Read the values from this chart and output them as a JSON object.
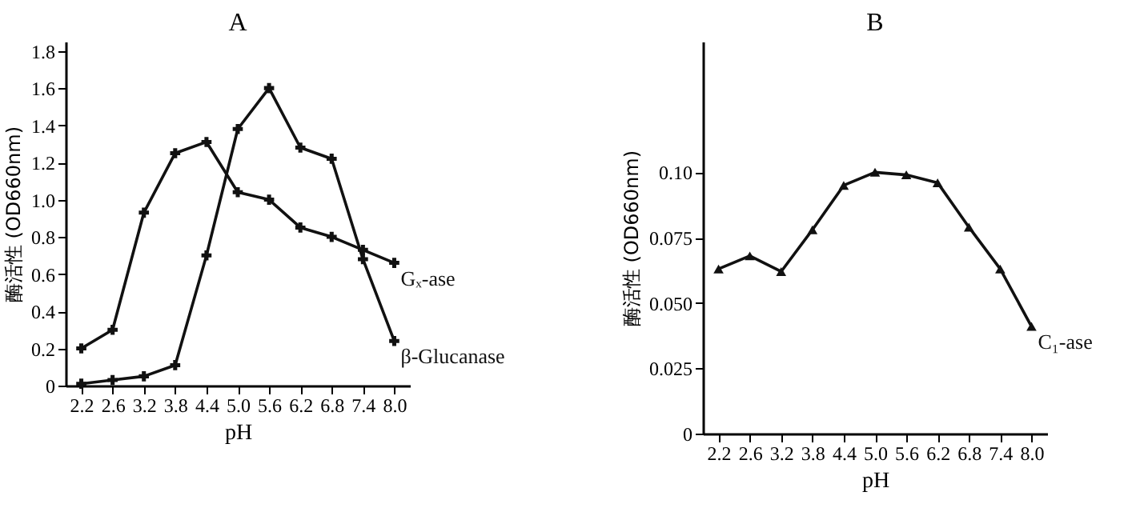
{
  "chart_data": [
    {
      "type": "line",
      "title": "A",
      "xlabel": "pH",
      "ylabel": "酶活性 (OD660nm)",
      "categories": [
        "2.2",
        "2.6",
        "3.2",
        "3.8",
        "4.4",
        "5.0",
        "5.6",
        "6.2",
        "6.8",
        "7.4",
        "8.0"
      ],
      "ylim": [
        0,
        1.85
      ],
      "yticks": [
        0,
        0.2,
        0.4,
        0.6,
        0.8,
        {
          "value": 1,
          "label": "1.0"
        },
        1.2,
        1.4,
        1.6,
        1.8
      ],
      "marker": "cross",
      "series": [
        {
          "name": "Gₓ-ase",
          "color": "#111111",
          "values": [
            0.2,
            0.3,
            0.93,
            1.25,
            1.31,
            1.04,
            1.0,
            0.85,
            0.8,
            0.73,
            0.66
          ]
        },
        {
          "name": "β-Glucanase",
          "color": "#111111",
          "values": [
            0.01,
            0.03,
            0.05,
            0.11,
            0.7,
            1.38,
            1.6,
            1.28,
            1.22,
            0.68,
            0.24
          ]
        }
      ]
    },
    {
      "type": "line",
      "title": "B",
      "xlabel": "pH",
      "ylabel": "酶活性 (OD660nm)",
      "categories": [
        "2.2",
        "2.6",
        "3.2",
        "3.8",
        "4.4",
        "5.0",
        "5.6",
        "6.2",
        "6.8",
        "7.4",
        "8.0"
      ],
      "ylim": [
        0,
        0.15
      ],
      "yticks": [
        0,
        {
          "value": 0.025,
          "label": "0.025"
        },
        {
          "value": 0.05,
          "label": "0.050"
        },
        {
          "value": 0.075,
          "label": "0.075"
        },
        {
          "value": 0.1,
          "label": "0.10"
        }
      ],
      "marker": "triangle",
      "series": [
        {
          "name": "C₁-ase",
          "color": "#111111",
          "values": [
            0.063,
            0.068,
            0.062,
            0.078,
            0.095,
            0.1,
            0.099,
            0.096,
            0.079,
            0.063,
            0.041
          ]
        }
      ]
    }
  ]
}
